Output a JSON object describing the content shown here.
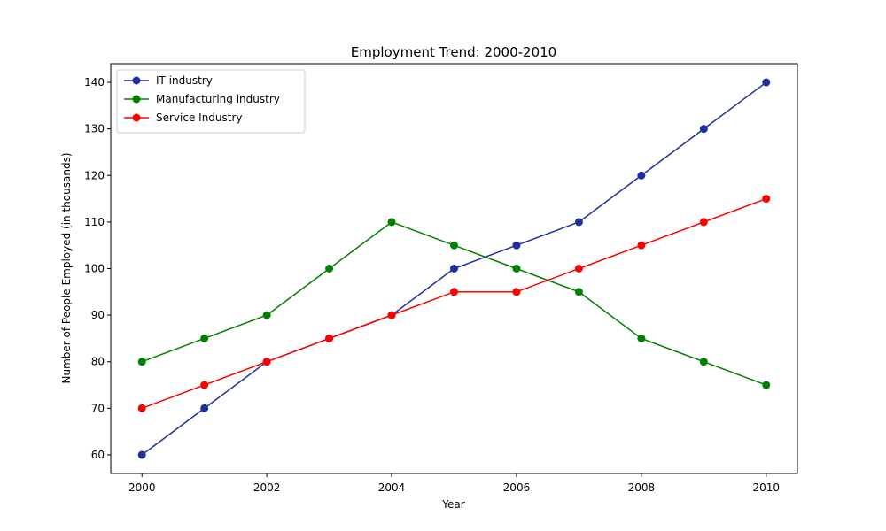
{
  "chart_data": {
    "type": "line",
    "title": "Employment Trend: 2000-2010",
    "xlabel": "Year",
    "ylabel": "Number of People Employed (in thousands)",
    "x": [
      2000,
      2001,
      2002,
      2003,
      2004,
      2005,
      2006,
      2007,
      2008,
      2009,
      2010
    ],
    "xlim": [
      1999.5,
      2010.5
    ],
    "ylim": [
      56,
      144
    ],
    "xticks": [
      2000,
      2002,
      2004,
      2006,
      2008,
      2010
    ],
    "yticks": [
      60,
      70,
      80,
      90,
      100,
      110,
      120,
      130,
      140
    ],
    "grid": false,
    "legend_position": "top-left",
    "series": [
      {
        "name": "IT industry",
        "color": "#1f2f9e",
        "marker": "circle",
        "values": [
          60,
          70,
          80,
          85,
          90,
          100,
          105,
          110,
          120,
          130,
          140
        ]
      },
      {
        "name": "Manufacturing industry",
        "color": "#008000",
        "marker": "circle",
        "values": [
          80,
          85,
          90,
          100,
          110,
          105,
          100,
          95,
          85,
          80,
          75
        ]
      },
      {
        "name": "Service Industry",
        "color": "#ff0000",
        "marker": "circle",
        "values": [
          70,
          75,
          80,
          85,
          90,
          95,
          95,
          100,
          105,
          110,
          115
        ]
      }
    ]
  }
}
